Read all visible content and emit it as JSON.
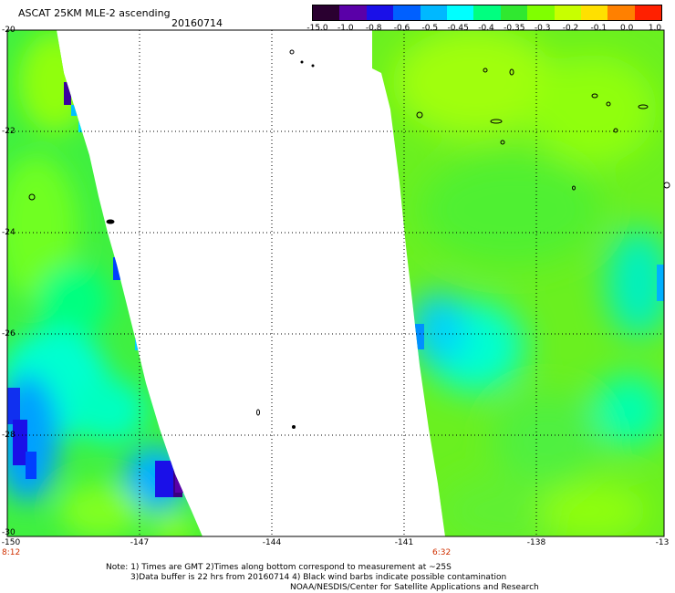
{
  "header": {
    "title": "ASCAT 25KM MLE-2 ascending",
    "date": "20160714"
  },
  "colorbar": {
    "labels": [
      "-15.0",
      "-1.0",
      "-0.8",
      "-0.6",
      "-0.5",
      "-0.45",
      "-0.4",
      "-0.35",
      "-0.3",
      "-0.2",
      "-0.1",
      "0.0",
      "1.0"
    ],
    "colors": [
      "#2a0030",
      "#5a00a8",
      "#1a10e8",
      "#0060ff",
      "#00b8ff",
      "#00ffff",
      "#00ff80",
      "#30e830",
      "#80ff00",
      "#c8ff00",
      "#ffe000",
      "#ff8000",
      "#ff2000"
    ]
  },
  "map": {
    "lon_labels": [
      "-150",
      "-147",
      "-144",
      "-141",
      "-138",
      "-13"
    ],
    "lat_labels": [
      "-20",
      "-22",
      "-24",
      "-26",
      "-28",
      "-30"
    ],
    "time_labels": [
      "8:12",
      "6:32"
    ]
  },
  "notes": {
    "line1": "Note: 1) Times are GMT 2)Times along bottom correspond to measurement at ~25S",
    "line2": "3)Data buffer is 22 hrs from 20160714 4) Black wind barbs indicate possible contamination",
    "line3": "NOAA/NESDIS/Center for Satellite Applications and Research"
  }
}
